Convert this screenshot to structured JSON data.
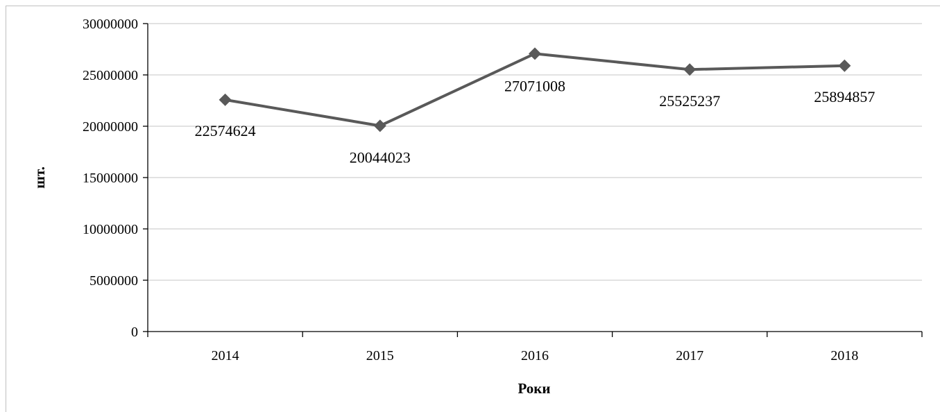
{
  "chart_data": {
    "type": "line",
    "categories": [
      "2014",
      "2015",
      "2016",
      "2017",
      "2018"
    ],
    "series": [
      {
        "values": [
          22574624,
          20044023,
          27071008,
          25525237,
          25894857
        ],
        "color": "#595959"
      }
    ],
    "data_labels": [
      "22574624",
      "20044023",
      "27071008",
      "25525237",
      "25894857"
    ],
    "xlabel": "Роки",
    "ylabel": "шт.",
    "ylim": [
      0,
      30000000
    ],
    "yticks": [
      "0",
      "5000000",
      "10000000",
      "15000000",
      "20000000",
      "25000000",
      "30000000"
    ],
    "grid": true,
    "marker": "diamond"
  }
}
